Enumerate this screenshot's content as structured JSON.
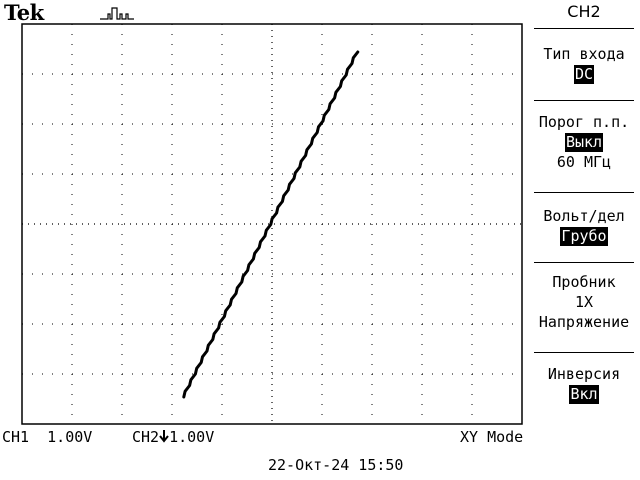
{
  "brand": "Tek",
  "trigger_icon": "pulse-trigger-icon",
  "screen": {
    "grid_divisions": {
      "horizontal": 10,
      "vertical": 8
    },
    "trace": {
      "mode": "XY",
      "color": "#000000"
    }
  },
  "menu": {
    "title": "CH2",
    "items": [
      {
        "label": "Тип входа",
        "value": "DC",
        "value_highlighted": true
      },
      {
        "label": "Порог п.п.",
        "value": "Выкл",
        "value_highlighted": true,
        "extra": "60 МГц"
      },
      {
        "label": "Вольт/дел",
        "value": "Грубо",
        "value_highlighted": true
      },
      {
        "label": "Пробник",
        "value": "1X",
        "value_highlighted": false,
        "extra": "Напряжение"
      },
      {
        "label": "Инверсия",
        "value": "Вкл",
        "value_highlighted": true
      }
    ]
  },
  "status": {
    "ch1": "CH1  1.00V",
    "ch2_label": "CH2",
    "ch2_icon": "arrow-down-icon",
    "ch2_scale": "1.00V",
    "mode": "XY Mode",
    "datetime": "22-Окт-24 15:50"
  }
}
